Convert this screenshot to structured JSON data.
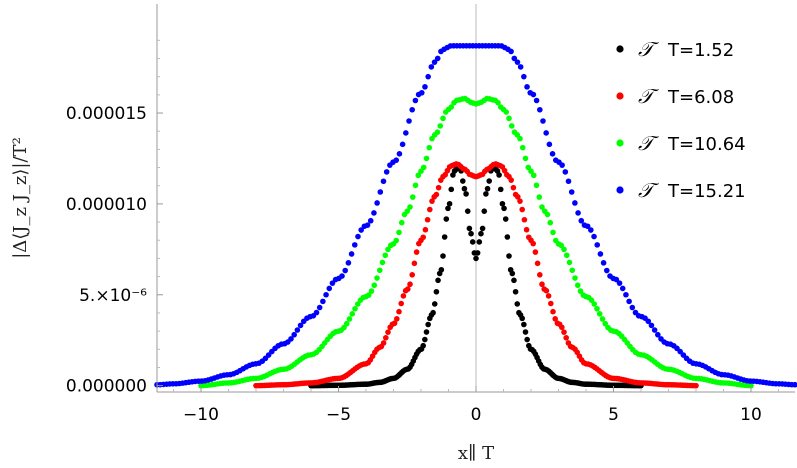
{
  "chart_data": {
    "type": "scatter",
    "title": "",
    "xlabel": "x∥ T",
    "ylabel": "|Δ⟨J_z J_z⟩|/T²",
    "xlim": [
      -11.6,
      11.6
    ],
    "ylim": [
      -3.5e-07,
      2.1e-05
    ],
    "x_ticks": [
      {
        "value": -10,
        "label": "−10"
      },
      {
        "value": -5,
        "label": "−5"
      },
      {
        "value": 0,
        "label": "0"
      },
      {
        "value": 5,
        "label": "5"
      },
      {
        "value": 10,
        "label": "10"
      }
    ],
    "y_ticks": [
      {
        "value": 0,
        "label": "0.000000"
      },
      {
        "value": 5e-06,
        "label": "5.×10⁻⁶"
      },
      {
        "value": 1e-05,
        "label": "0.000010"
      },
      {
        "value": 1.5e-05,
        "label": "0.000015"
      }
    ],
    "legend_position": "top-right",
    "legend_symbol": "𝒯",
    "series": [
      {
        "name": "T=1.52",
        "color": "#000000",
        "x": [
          -6.0,
          -5.0,
          -4.0,
          -3.5,
          -3.0,
          -2.5,
          -2.0,
          -1.6,
          -1.3,
          -1.0,
          -0.8,
          -0.6,
          -0.4,
          -0.2,
          0.0
        ],
        "y_mirrored_values": [
          0.0,
          2e-08,
          8e-08,
          1.8e-07,
          4e-07,
          9e-07,
          2e-06,
          3.9e-06,
          6.2e-06,
          9.8e-06,
          1.18e-05,
          1.21e-05,
          1.08e-05,
          8.4e-06,
          7e-06
        ]
      },
      {
        "name": "T=6.08",
        "color": "#ff0000",
        "x": [
          -8.0,
          -7.0,
          -6.0,
          -5.0,
          -4.0,
          -3.5,
          -3.0,
          -2.5,
          -2.0,
          -1.5,
          -1.2,
          -0.9,
          -0.7,
          -0.4,
          -0.2,
          0.0
        ],
        "y_mirrored_values": [
          0.0,
          5e-08,
          1.5e-07,
          4e-07,
          1.2e-06,
          2.1e-06,
          3.4e-06,
          5.3e-06,
          8e-06,
          1.04e-05,
          1.15e-05,
          1.21e-05,
          1.22e-05,
          1.19e-05,
          1.16e-05,
          1.15e-05
        ]
      },
      {
        "name": "T=10.64",
        "color": "#00ff00",
        "x": [
          -10.0,
          -9.0,
          -8.0,
          -7.0,
          -6.0,
          -5.0,
          -4.0,
          -3.0,
          -2.5,
          -2.0,
          -1.5,
          -1.0,
          -0.7,
          -0.4,
          -0.2,
          0.0
        ],
        "y_mirrored_values": [
          0.0,
          1.5e-07,
          4e-07,
          9e-07,
          1.7e-06,
          3e-06,
          4.9e-06,
          7.8e-06,
          9.6e-06,
          1.18e-05,
          1.38e-05,
          1.52e-05,
          1.57e-05,
          1.58e-05,
          1.56e-05,
          1.55e-05
        ]
      },
      {
        "name": "T=15.21",
        "color": "#0000ff",
        "x": [
          -11.6,
          -11.0,
          -10.0,
          -9.0,
          -8.0,
          -7.0,
          -6.0,
          -5.0,
          -4.0,
          -3.0,
          -2.0,
          -1.5,
          -1.2,
          -0.9,
          -0.6,
          -0.3,
          0.0
        ],
        "y_mirrored_values": [
          5e-08,
          1e-07,
          2.5e-07,
          6e-07,
          1.2e-06,
          2.3e-06,
          3.8e-06,
          5.9e-06,
          8.8e-06,
          1.23e-05,
          1.61e-05,
          1.78e-05,
          1.85e-05,
          1.87e-05,
          1.87e-05,
          1.87e-05,
          1.87e-05
        ]
      }
    ]
  }
}
